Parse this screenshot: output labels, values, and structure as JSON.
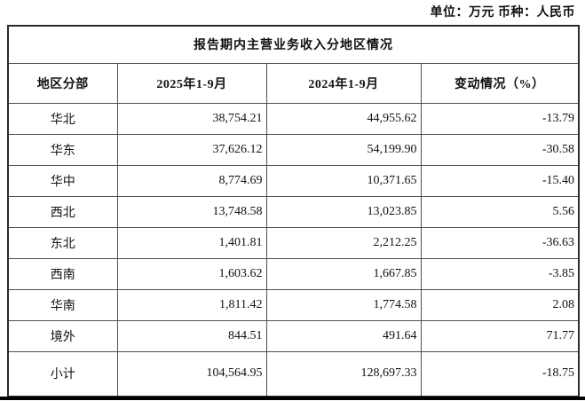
{
  "page": {
    "unit_label": "单位：万元 币种：人民币"
  },
  "table": {
    "title": "报告期内主营业务收入分地区情况",
    "columns": [
      "地区分部",
      "2025年1-9月",
      "2024年1-9月",
      "变动情况（%）"
    ],
    "rows": [
      [
        "华北",
        "38,754.21",
        "44,955.62",
        "-13.79"
      ],
      [
        "华东",
        "37,626.12",
        "54,199.90",
        "-30.58"
      ],
      [
        "华中",
        "8,774.69",
        "10,371.65",
        "-15.40"
      ],
      [
        "西北",
        "13,748.58",
        "13,023.85",
        "5.56"
      ],
      [
        "东北",
        "1,401.81",
        "2,212.25",
        "-36.63"
      ],
      [
        "西南",
        "1,603.62",
        "1,667.85",
        "-3.85"
      ],
      [
        "华南",
        "1,811.42",
        "1,774.58",
        "2.08"
      ],
      [
        "境外",
        "844.51",
        "491.64",
        "71.77"
      ],
      [
        "小计",
        "104,564.95",
        "128,697.33",
        "-18.75"
      ]
    ]
  }
}
